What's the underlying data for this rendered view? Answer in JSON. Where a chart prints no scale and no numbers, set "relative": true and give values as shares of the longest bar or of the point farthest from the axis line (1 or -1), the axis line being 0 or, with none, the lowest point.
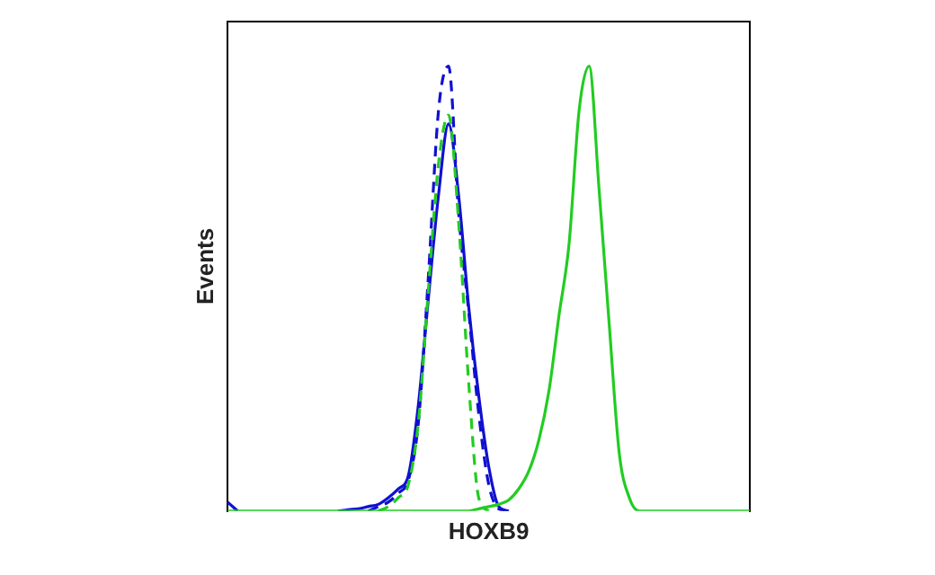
{
  "chart_data": {
    "type": "line",
    "xlabel": "HOXB9",
    "ylabel": "Events",
    "relative": true,
    "grid": false,
    "legend": false,
    "marker": "none",
    "categories": [
      null,
      null,
      null,
      null,
      null,
      null,
      null,
      null,
      null,
      null,
      null,
      null,
      null,
      null,
      null,
      null,
      null,
      null,
      null,
      null,
      null,
      null,
      null,
      null,
      null,
      null,
      null,
      null,
      null,
      null,
      null,
      null,
      null,
      null,
      null,
      null,
      null,
      null,
      null,
      null,
      null,
      null,
      null,
      null,
      null,
      null,
      null,
      null,
      null,
      null,
      null,
      null,
      null
    ],
    "series": [
      {
        "color": "#22cc22",
        "line_style": "solid",
        "values": [
          0,
          0,
          0,
          0,
          0,
          0,
          0,
          0,
          0,
          0,
          0,
          0,
          0,
          0,
          0,
          0,
          0,
          0,
          0,
          0,
          0,
          0,
          0,
          0,
          0,
          0.005,
          0.01,
          0.015,
          0.025,
          0.05,
          0.09,
          0.16,
          0.27,
          0.44,
          0.6,
          0.9,
          1,
          0.72,
          0.42,
          0.13,
          0.03,
          0,
          0,
          0,
          0,
          0,
          0,
          0,
          0,
          0,
          0,
          0,
          0
        ]
      },
      {
        "color": "#22cc22",
        "line_style": "dashed",
        "values": [
          null,
          null,
          null,
          null,
          null,
          null,
          null,
          null,
          null,
          null,
          null,
          null,
          null,
          null,
          null,
          0,
          0.01,
          0.03,
          0.06,
          0.2,
          0.5,
          0.78,
          0.89,
          0.65,
          0.29,
          0.03,
          0,
          null,
          null,
          null,
          null,
          null,
          null,
          null,
          null,
          null,
          null,
          null,
          null,
          null,
          null,
          null,
          null,
          null,
          null,
          null,
          null,
          null,
          null,
          null,
          null,
          null,
          null
        ]
      },
      {
        "color": "#1010d0",
        "line_style": "dashed",
        "values": [
          null,
          null,
          null,
          null,
          null,
          null,
          null,
          null,
          null,
          null,
          null,
          null,
          null,
          null,
          0,
          0.01,
          0.02,
          0.04,
          0.07,
          0.2,
          0.53,
          0.9,
          1,
          0.67,
          0.45,
          0.22,
          0.06,
          0.005,
          0,
          null,
          null,
          null,
          null,
          null,
          null,
          null,
          null,
          null,
          null,
          null,
          null,
          null,
          null,
          null,
          null,
          null,
          null,
          null,
          null,
          null,
          null,
          null,
          null
        ]
      },
      {
        "color": "#1010d0",
        "line_style": "solid",
        "values": [
          0.02,
          0,
          null,
          null,
          null,
          null,
          null,
          null,
          null,
          null,
          null,
          0,
          0.003,
          0.005,
          0.01,
          0.015,
          0.03,
          0.05,
          0.08,
          0.24,
          0.48,
          0.71,
          0.87,
          0.71,
          0.46,
          0.26,
          0.1,
          0.01,
          0,
          null,
          null,
          null,
          null,
          null,
          null,
          null,
          null,
          null,
          null,
          null,
          null,
          null,
          null,
          null,
          null,
          null,
          null,
          null,
          null,
          null,
          null,
          null,
          null
        ]
      }
    ]
  }
}
